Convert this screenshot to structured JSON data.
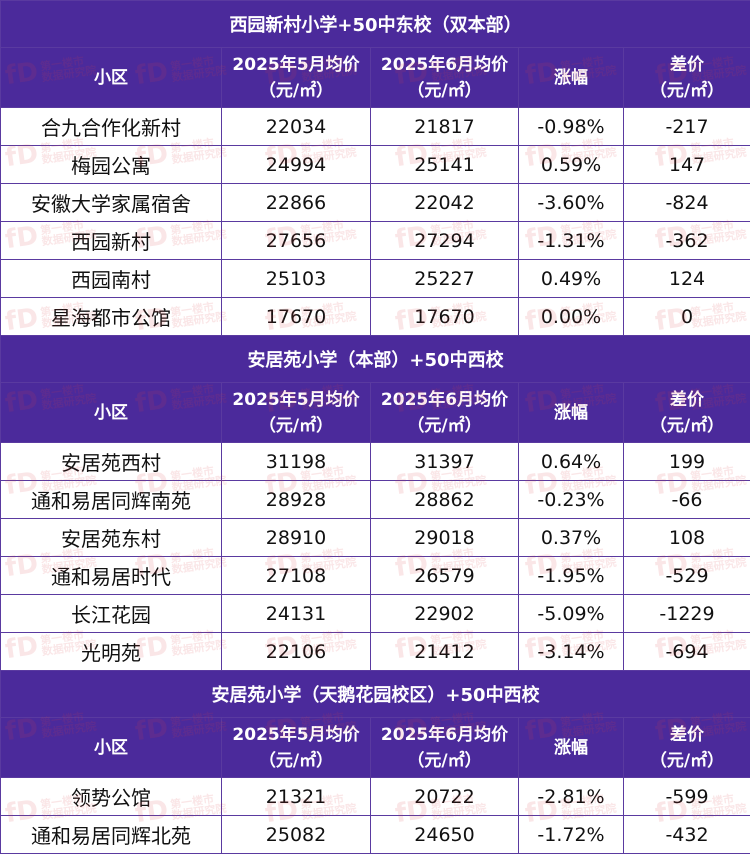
{
  "header": {
    "col_name": "小区",
    "col_may": "2025年5月均价",
    "col_june": "2025年6月均价",
    "col_unit": "（元/㎡）",
    "col_change": "涨幅",
    "col_diff": "差价",
    "col_diff_unit": "（元/㎡）"
  },
  "watermark": {
    "mark": "fD",
    "line1": "第一楼市",
    "line2": "数据研究院"
  },
  "sections": [
    {
      "title": "西园新村小学+50中东校（双本部）",
      "rows": [
        {
          "name": "合九合作化新村",
          "may": "22034",
          "june": "21817",
          "change": "-0.98%",
          "diff": "-217"
        },
        {
          "name": "梅园公寓",
          "may": "24994",
          "june": "25141",
          "change": "0.59%",
          "diff": "147"
        },
        {
          "name": "安徽大学家属宿舍",
          "may": "22866",
          "june": "22042",
          "change": "-3.60%",
          "diff": "-824"
        },
        {
          "name": "西园新村",
          "may": "27656",
          "june": "27294",
          "change": "-1.31%",
          "diff": "-362"
        },
        {
          "name": "西园南村",
          "may": "25103",
          "june": "25227",
          "change": "0.49%",
          "diff": "124"
        },
        {
          "name": "星海都市公馆",
          "may": "17670",
          "june": "17670",
          "change": "0.00%",
          "diff": "0"
        }
      ]
    },
    {
      "title": "安居苑小学（本部）+50中西校",
      "rows": [
        {
          "name": "安居苑西村",
          "may": "31198",
          "june": "31397",
          "change": "0.64%",
          "diff": "199"
        },
        {
          "name": "通和易居同辉南苑",
          "may": "28928",
          "june": "28862",
          "change": "-0.23%",
          "diff": "-66"
        },
        {
          "name": "安居苑东村",
          "may": "28910",
          "june": "29018",
          "change": "0.37%",
          "diff": "108"
        },
        {
          "name": "通和易居时代",
          "may": "27108",
          "june": "26579",
          "change": "-1.95%",
          "diff": "-529"
        },
        {
          "name": "长江花园",
          "may": "24131",
          "june": "22902",
          "change": "-5.09%",
          "diff": "-1229"
        },
        {
          "name": "光明苑",
          "may": "22106",
          "june": "21412",
          "change": "-3.14%",
          "diff": "-694"
        }
      ]
    },
    {
      "title": "安居苑小学（天鹅花园校区）+50中西校",
      "rows": [
        {
          "name": "领势公馆",
          "may": "21321",
          "june": "20722",
          "change": "-2.81%",
          "diff": "-599"
        },
        {
          "name": "通和易居同辉北苑",
          "may": "25082",
          "june": "24650",
          "change": "-1.72%",
          "diff": "-432"
        }
      ]
    }
  ]
}
